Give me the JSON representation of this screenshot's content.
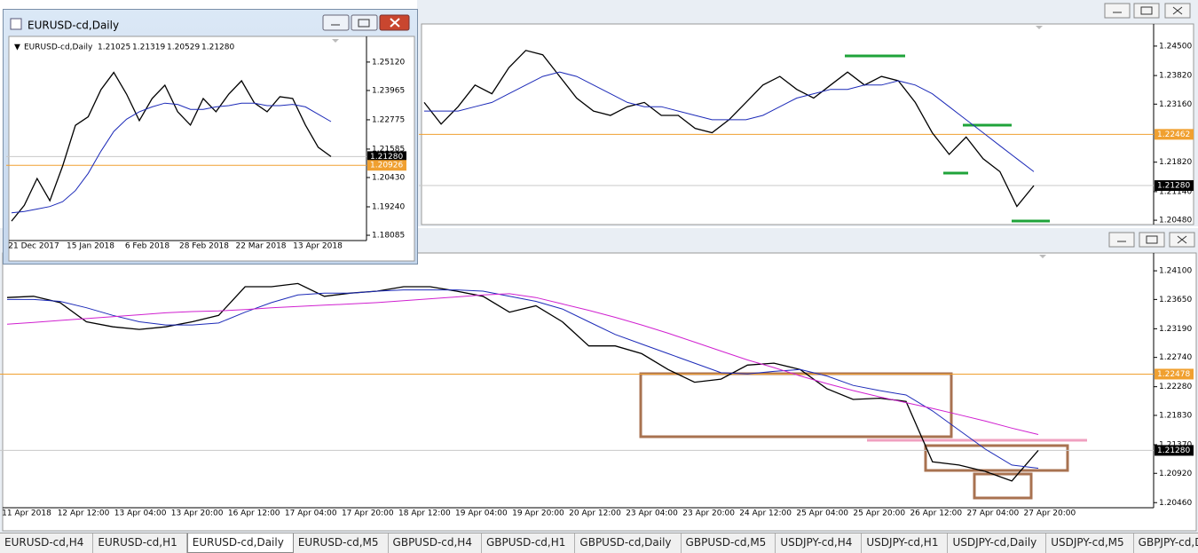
{
  "top_chart": {
    "type": "line",
    "ylim": [
      1.204,
      1.2499
    ],
    "yticks": [
      {
        "value": 1.245,
        "label": "1.24500"
      },
      {
        "value": 1.2382,
        "label": "1.23820"
      },
      {
        "value": 1.2316,
        "label": "1.23160"
      },
      {
        "value": 1.2182,
        "label": "1.21820"
      },
      {
        "value": 1.2114,
        "label": "1.21140"
      },
      {
        "value": 1.2048,
        "label": "1.20480"
      }
    ],
    "levels": [
      {
        "value": 1.22462,
        "label": "1.22462",
        "color": "#f0a030"
      },
      {
        "value": 1.2128,
        "label": "1.21280",
        "color": "#000000"
      }
    ],
    "series": [
      {
        "color": "#000000",
        "values": [
          1.232,
          1.227,
          1.231,
          1.236,
          1.234,
          1.24,
          1.244,
          1.243,
          1.238,
          1.233,
          1.23,
          1.229,
          1.231,
          1.232,
          1.229,
          1.229,
          1.226,
          1.225,
          1.228,
          1.232,
          1.236,
          1.238,
          1.235,
          1.233,
          1.236,
          1.239,
          1.236,
          1.238,
          1.237,
          1.232,
          1.225,
          1.22,
          1.224,
          1.219,
          1.216,
          1.208,
          1.2128
        ]
      },
      {
        "color": "#1c2ab8",
        "values": [
          1.23,
          1.23,
          1.23,
          1.231,
          1.232,
          1.234,
          1.236,
          1.238,
          1.239,
          1.238,
          1.236,
          1.234,
          1.232,
          1.231,
          1.231,
          1.23,
          1.229,
          1.228,
          1.228,
          1.228,
          1.229,
          1.231,
          1.233,
          1.234,
          1.235,
          1.235,
          1.236,
          1.236,
          1.237,
          1.236,
          1.234,
          1.231,
          1.228,
          1.225,
          1.222,
          1.219,
          1.216
        ]
      }
    ]
  },
  "bottom_chart": {
    "type": "line",
    "ylim": [
      1.2038,
      1.2431
    ],
    "yticks": [
      {
        "value": 1.241,
        "label": "1.24100"
      },
      {
        "value": 1.2365,
        "label": "1.23650"
      },
      {
        "value": 1.2319,
        "label": "1.23190"
      },
      {
        "value": 1.2274,
        "label": "1.22740"
      },
      {
        "value": 1.2228,
        "label": "1.22280"
      },
      {
        "value": 1.2183,
        "label": "1.21830"
      },
      {
        "value": 1.2137,
        "label": "1.21370"
      },
      {
        "value": 1.2092,
        "label": "1.20920"
      },
      {
        "value": 1.2046,
        "label": "1.20460"
      }
    ],
    "levels": [
      {
        "value": 1.22478,
        "label": "1.22478",
        "color": "#f0a030"
      },
      {
        "value": 1.2128,
        "label": "1.21280",
        "color": "#000000"
      }
    ],
    "categories": [
      "11 Apr 2018",
      "12 Apr 12:00",
      "13 Apr 04:00",
      "13 Apr 20:00",
      "16 Apr 12:00",
      "17 Apr 04:00",
      "17 Apr 20:00",
      "18 Apr 12:00",
      "19 Apr 04:00",
      "19 Apr 20:00",
      "20 Apr 12:00",
      "23 Apr 04:00",
      "23 Apr 20:00",
      "24 Apr 12:00",
      "25 Apr 04:00",
      "25 Apr 20:00",
      "26 Apr 12:00",
      "27 Apr 04:00",
      "27 Apr 20:00"
    ],
    "series": [
      {
        "color": "#000000",
        "values": [
          1.2368,
          1.237,
          1.236,
          1.233,
          1.2322,
          1.2318,
          1.2322,
          1.233,
          1.234,
          1.2385,
          1.2385,
          1.239,
          1.237,
          1.2375,
          1.2378,
          1.2385,
          1.2385,
          1.2378,
          1.237,
          1.2345,
          1.2355,
          1.233,
          1.2292,
          1.2292,
          1.228,
          1.2255,
          1.2235,
          1.224,
          1.2262,
          1.2265,
          1.2255,
          1.2225,
          1.2208,
          1.221,
          1.2205,
          1.211,
          1.2105,
          1.2095,
          1.208,
          1.2128
        ]
      },
      {
        "color": "#1c2ab8",
        "values": [
          1.2365,
          1.2365,
          1.2362,
          1.2352,
          1.234,
          1.233,
          1.2325,
          1.2325,
          1.2328,
          1.2345,
          1.236,
          1.2372,
          1.2375,
          1.2375,
          1.2378,
          1.238,
          1.238,
          1.238,
          1.2378,
          1.237,
          1.2362,
          1.235,
          1.233,
          1.231,
          1.2295,
          1.228,
          1.2265,
          1.225,
          1.2248,
          1.2252,
          1.2255,
          1.2245,
          1.223,
          1.2222,
          1.2215,
          1.219,
          1.216,
          1.213,
          1.2105,
          1.21
        ]
      },
      {
        "color": "#d020d0",
        "values": [
          1.2326,
          1.2329,
          1.2332,
          1.2335,
          1.2338,
          1.2341,
          1.2344,
          1.2346,
          1.2347,
          1.2349,
          1.2352,
          1.2354,
          1.2356,
          1.2358,
          1.236,
          1.2363,
          1.2366,
          1.2369,
          1.2372,
          1.2374,
          1.2368,
          1.2358,
          1.2348,
          1.2337,
          1.2325,
          1.2312,
          1.2298,
          1.2284,
          1.227,
          1.2258,
          1.2245,
          1.2233,
          1.2222,
          1.2212,
          1.2203,
          1.2194,
          1.2184,
          1.2174,
          1.2163,
          1.2153
        ]
      }
    ]
  },
  "daily_window": {
    "title": "EURUSD-cd,Daily",
    "header": "EURUSD-cd,Daily",
    "ohlc": [
      "1.21025",
      "1.21319",
      "1.20529",
      "1.21280"
    ],
    "chart": {
      "type": "line",
      "ylim": [
        1.1787,
        1.2609
      ],
      "yticks": [
        {
          "value": 1.2512,
          "label": "1.25120"
        },
        {
          "value": 1.23965,
          "label": "1.23965"
        },
        {
          "value": 1.22775,
          "label": "1.22775"
        },
        {
          "value": 1.21585,
          "label": "1.21585"
        },
        {
          "value": 1.2043,
          "label": "1.20430"
        },
        {
          "value": 1.1924,
          "label": "1.19240"
        },
        {
          "value": 1.18085,
          "label": "1.18085"
        }
      ],
      "levels": [
        {
          "value": 1.2128,
          "label": "1.21280",
          "color": "#000000"
        },
        {
          "value": 1.20926,
          "label": "1.20926",
          "color": "#f0a030"
        }
      ],
      "categories": [
        "21 Dec 2017",
        "15 Jan 2018",
        "6 Feb 2018",
        "28 Feb 2018",
        "22 Mar 2018",
        "13 Apr 2018"
      ],
      "series": [
        {
          "color": "#000000",
          "values": [
            1.1866,
            1.193,
            1.2039,
            1.1949,
            1.209,
            1.2255,
            1.229,
            1.24,
            1.247,
            1.2382,
            1.2274,
            1.2364,
            1.2418,
            1.231,
            1.2256,
            1.2364,
            1.231,
            1.2382,
            1.2436,
            1.2346,
            1.231,
            1.2371,
            1.2364,
            1.2256,
            1.2166,
            1.2128
          ]
        },
        {
          "color": "#1c2ab8",
          "values": [
            1.19,
            1.1905,
            1.1915,
            1.1925,
            1.1945,
            1.199,
            1.206,
            1.215,
            1.223,
            1.228,
            1.231,
            1.233,
            1.2345,
            1.234,
            1.232,
            1.232,
            1.233,
            1.2335,
            1.2345,
            1.2345,
            1.2335,
            1.2335,
            1.234,
            1.233,
            1.23,
            1.227
          ]
        }
      ]
    }
  },
  "tabs": [
    "EURUSD-cd,H4",
    "EURUSD-cd,H1",
    "EURUSD-cd,Daily",
    "EURUSD-cd,M5",
    "GBPUSD-cd,H4",
    "GBPUSD-cd,H1",
    "GBPUSD-cd,Daily",
    "GBPUSD-cd,M5",
    "USDJPY-cd,H4",
    "USDJPY-cd,H1",
    "USDJPY-cd,Daily",
    "USDJPY-cd,M5",
    "GBPJPY-cd,Daily"
  ],
  "active_tab": 2
}
